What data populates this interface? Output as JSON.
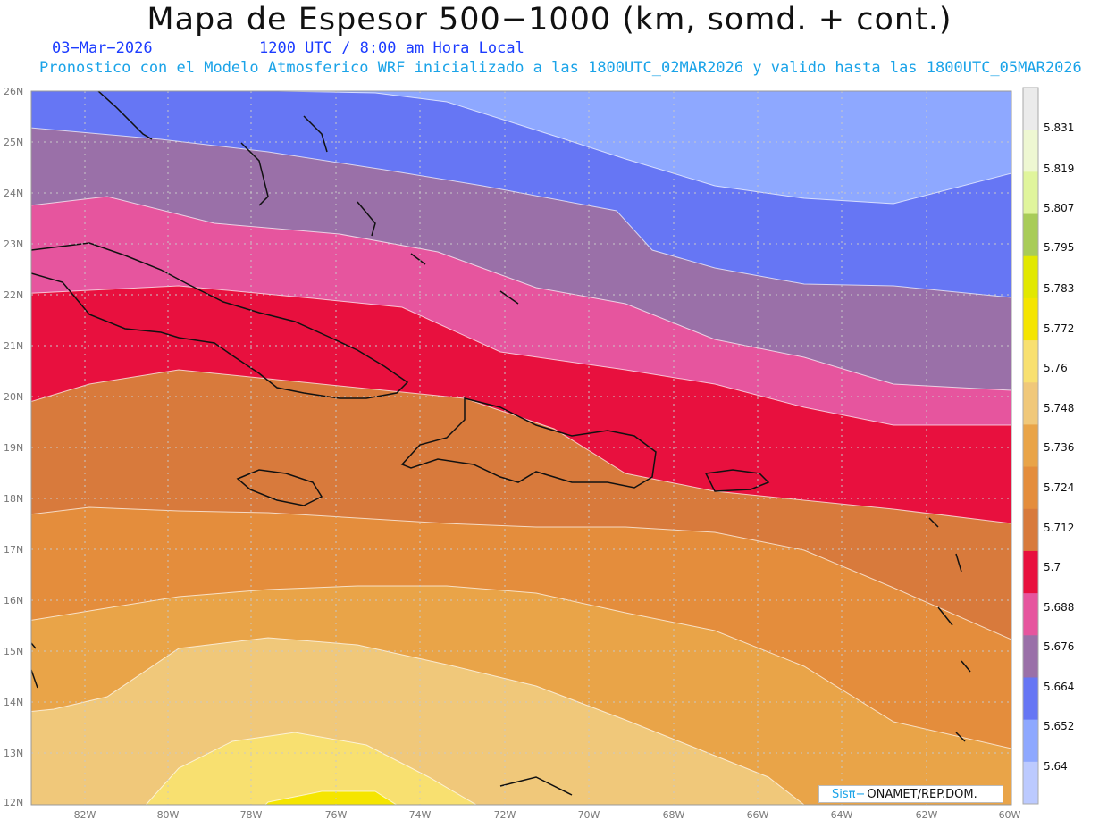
{
  "header": {
    "title": "Mapa de Espesor 500−1000 (km, somd. + cont.)",
    "date": "03−Mar−2026",
    "time": "1200 UTC / 8:00 am Hora Local",
    "subtitle": "Pronostico con el Modelo Atmosferico WRF inicializado a las 1800UTC_02MAR2026 y valido hasta las  1800UTC_05MAR2026"
  },
  "map": {
    "projection": "lat-lon",
    "lon_range": [
      -83,
      -60
    ],
    "lat_range": [
      12,
      26
    ],
    "lat_labels": [
      "26N",
      "25N",
      "24N",
      "23N",
      "22N",
      "21N",
      "20N",
      "19N",
      "18N",
      "17N",
      "16N",
      "15N",
      "14N",
      "13N",
      "12N"
    ],
    "lon_labels": [
      "82W",
      "80W",
      "78W",
      "76W",
      "74W",
      "72W",
      "70W",
      "68W",
      "66W",
      "64W",
      "62W",
      "60W"
    ],
    "grid": true,
    "bands": [
      {
        "level": "5.652",
        "color": "#8ea8ff"
      },
      {
        "level": "5.664",
        "color": "#6676f4"
      },
      {
        "level": "5.676",
        "color": "#9a70a8"
      },
      {
        "level": "5.688",
        "color": "#e6559e"
      },
      {
        "level": "5.7",
        "color": "#e8103e"
      },
      {
        "level": "5.712",
        "color": "#d87a3c"
      },
      {
        "level": "5.724",
        "color": "#e48d3c"
      },
      {
        "level": "5.736",
        "color": "#e9a448"
      },
      {
        "level": "5.748",
        "color": "#f0c87a"
      },
      {
        "level": "5.76",
        "color": "#f8e070"
      },
      {
        "level": "5.772",
        "color": "#f5e500"
      }
    ]
  },
  "colorbar": {
    "labels": [
      "5.831",
      "5.819",
      "5.807",
      "5.795",
      "5.783",
      "5.772",
      "5.76",
      "5.748",
      "5.736",
      "5.724",
      "5.712",
      "5.7",
      "5.688",
      "5.676",
      "5.664",
      "5.652",
      "5.64"
    ],
    "colors": [
      "#ebebeb",
      "#eef7d2",
      "#e0f59c",
      "#a8cc58",
      "#e2e800",
      "#f5e500",
      "#f8e070",
      "#f0c87a",
      "#e9a448",
      "#e48d3c",
      "#d87a3c",
      "#e8103e",
      "#e6559e",
      "#9a70a8",
      "#6676f4",
      "#8ea8ff",
      "#bccaff"
    ]
  },
  "logo": {
    "sis": "Sisπ−",
    "text": "ONAMET/REP.DOM."
  }
}
